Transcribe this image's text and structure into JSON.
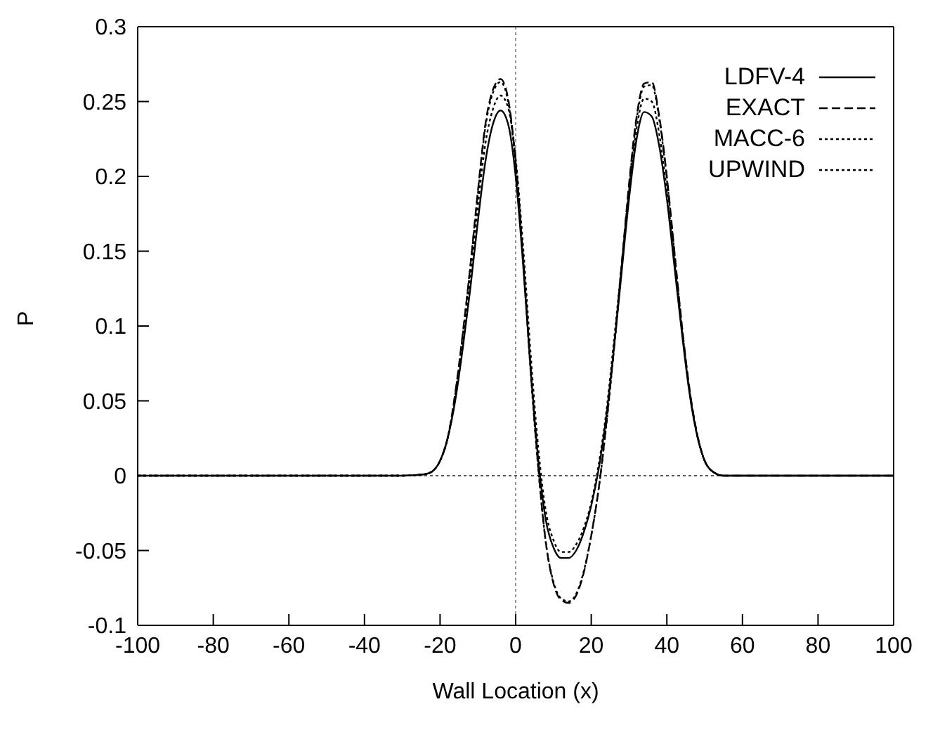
{
  "chart_data": {
    "type": "line",
    "xlabel": "Wall Location (x)",
    "ylabel": "P",
    "x": [
      -100,
      -30,
      -24,
      -22,
      -20,
      -18,
      -16,
      -14,
      -12,
      -10,
      -8,
      -6,
      -4,
      -2,
      0,
      2,
      4,
      6,
      8,
      10,
      12,
      14,
      16,
      18,
      20,
      22,
      24,
      26,
      28,
      30,
      32,
      34,
      36,
      38,
      40,
      42,
      44,
      46,
      48,
      50,
      52,
      55,
      100
    ],
    "series": [
      {
        "name": "LDFV-4",
        "color": "#000000",
        "line_style": "solid",
        "values": [
          0,
          0,
          0.001,
          0.003,
          0.01,
          0.025,
          0.05,
          0.085,
          0.125,
          0.17,
          0.21,
          0.235,
          0.244,
          0.235,
          0.2,
          0.14,
          0.07,
          0.01,
          -0.03,
          -0.048,
          -0.055,
          -0.055,
          -0.05,
          -0.038,
          -0.02,
          0.005,
          0.04,
          0.085,
          0.135,
          0.185,
          0.225,
          0.243,
          0.24,
          0.22,
          0.185,
          0.14,
          0.095,
          0.055,
          0.027,
          0.01,
          0.003,
          0,
          0
        ]
      },
      {
        "name": "EXACT",
        "color": "#000000",
        "line_style": "dashed",
        "values": [
          0,
          0,
          0.001,
          0.003,
          0.01,
          0.025,
          0.055,
          0.095,
          0.14,
          0.19,
          0.235,
          0.258,
          0.265,
          0.252,
          0.21,
          0.145,
          0.07,
          0.005,
          -0.045,
          -0.072,
          -0.083,
          -0.085,
          -0.08,
          -0.065,
          -0.04,
          -0.008,
          0.035,
          0.085,
          0.14,
          0.195,
          0.24,
          0.262,
          0.263,
          0.24,
          0.2,
          0.15,
          0.1,
          0.058,
          0.028,
          0.01,
          0.003,
          0,
          0
        ]
      },
      {
        "name": "MACC-6",
        "color": "#000000",
        "line_style": "dotted",
        "values": [
          0,
          0,
          0.001,
          0.003,
          0.01,
          0.025,
          0.054,
          0.094,
          0.139,
          0.188,
          0.233,
          0.256,
          0.263,
          0.25,
          0.208,
          0.143,
          0.068,
          0.004,
          -0.045,
          -0.071,
          -0.082,
          -0.084,
          -0.079,
          -0.064,
          -0.04,
          -0.008,
          0.034,
          0.084,
          0.139,
          0.193,
          0.238,
          0.26,
          0.261,
          0.238,
          0.198,
          0.149,
          0.099,
          0.057,
          0.028,
          0.01,
          0.003,
          0,
          0
        ]
      },
      {
        "name": "UPWIND",
        "color": "#000000",
        "line_style": "dotted",
        "values": [
          0,
          0,
          0.001,
          0.003,
          0.01,
          0.025,
          0.052,
          0.09,
          0.132,
          0.18,
          0.222,
          0.245,
          0.254,
          0.246,
          0.212,
          0.152,
          0.08,
          0.018,
          -0.024,
          -0.043,
          -0.051,
          -0.051,
          -0.046,
          -0.035,
          -0.018,
          0.008,
          0.043,
          0.09,
          0.14,
          0.19,
          0.232,
          0.252,
          0.25,
          0.228,
          0.19,
          0.143,
          0.097,
          0.056,
          0.027,
          0.01,
          0.003,
          0,
          0
        ]
      }
    ],
    "xlim": [
      -100,
      100
    ],
    "xticks": [
      -100,
      -80,
      -60,
      -40,
      -20,
      0,
      20,
      40,
      60,
      80,
      100
    ],
    "ylim": [
      -0.1,
      0.3
    ],
    "yticks": [
      -0.1,
      -0.05,
      0,
      0.05,
      0.1,
      0.15,
      0.2,
      0.25,
      0.3
    ],
    "ref_lines": [
      {
        "axis": "x",
        "value": 0,
        "label": null,
        "line_style": "dotted",
        "color": "#999999"
      },
      {
        "axis": "y",
        "value": 0,
        "label": null,
        "line_style": "dotted",
        "color": "#555555"
      }
    ],
    "legend": "top right",
    "grid": false
  }
}
